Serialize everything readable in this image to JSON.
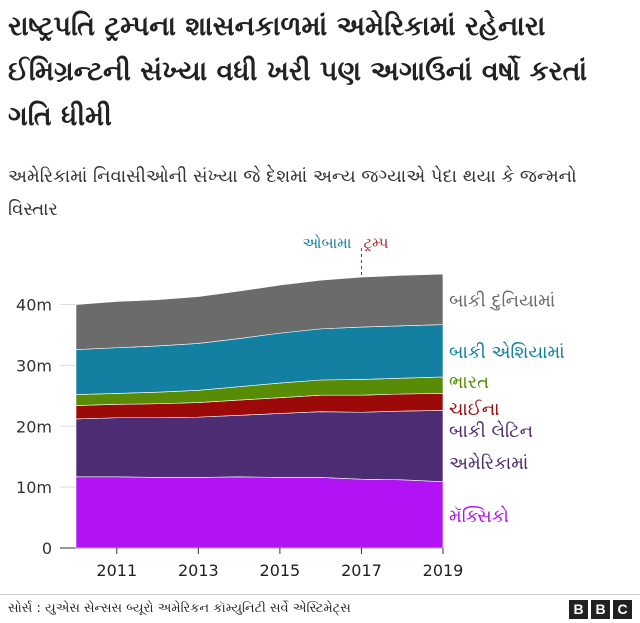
{
  "title": "રાષ્ટ્રપતિ ટ્રમ્પના શાસનકાળમાં અમેરિકામાં રહેનારા ઈમિગ્રન્ટની સંખ્યા વધી ખરી પણ અગાઉનાં વર્ષો કરતાં ગતિ ધીમી",
  "subtitle": "અમેરિકામાં નિવાસીઓની સંખ્યા જે દેશમાં અન્ય જગ્યાએ પેદા થયા કે જન્મનો વિસ્તાર",
  "source": "સોર્સ : યુએસ સેન્સસ બ્યૂરો અમેરિકન કૉમ્યુનિટી સર્વે એસ્ટિમેટ્સ",
  "logo": [
    "B",
    "B",
    "C"
  ],
  "chart_data": {
    "type": "area",
    "stacked": true,
    "x": [
      2010,
      2011,
      2012,
      2013,
      2014,
      2015,
      2016,
      2017,
      2018,
      2019
    ],
    "xticks": [
      2011,
      2013,
      2015,
      2017,
      2019
    ],
    "ytick_labels": [
      "0",
      "10m",
      "20m",
      "30m",
      "40m"
    ],
    "yticks": [
      0,
      10,
      20,
      30,
      40
    ],
    "ylim": [
      0,
      46
    ],
    "grid": true,
    "legend": "right, labels beside areas",
    "annotations": [
      {
        "label": "ઓબામા",
        "x": 2017,
        "side": "left",
        "color": "#1380a1"
      },
      {
        "label": "ટ્રમ્પ",
        "x": 2017,
        "side": "right",
        "color": "#bb1919"
      }
    ],
    "series": [
      {
        "name": "મૅક્સિકો",
        "color": "#b313f4",
        "values": [
          11.7,
          11.7,
          11.6,
          11.6,
          11.7,
          11.6,
          11.6,
          11.3,
          11.2,
          10.9
        ]
      },
      {
        "name": "બાકી લેટિન અમેરિકામાં",
        "color": "#4c2c72",
        "values": [
          9.5,
          9.7,
          9.8,
          9.9,
          10.1,
          10.5,
          10.8,
          11.0,
          11.3,
          11.7
        ]
      },
      {
        "name": "ચાઈના",
        "color": "#9b0909",
        "values": [
          2.2,
          2.2,
          2.3,
          2.4,
          2.5,
          2.6,
          2.7,
          2.8,
          2.8,
          2.8
        ]
      },
      {
        "name": "ભારત",
        "color": "#588c06",
        "values": [
          1.8,
          1.8,
          1.9,
          2.0,
          2.2,
          2.4,
          2.5,
          2.6,
          2.6,
          2.7
        ]
      },
      {
        "name": "બાકી એશિયામાં",
        "color": "#1380a1",
        "values": [
          7.4,
          7.5,
          7.6,
          7.7,
          7.9,
          8.2,
          8.4,
          8.6,
          8.6,
          8.6
        ]
      },
      {
        "name": "બાકી દુનિયામાં",
        "color": "#6b6b6b",
        "values": [
          7.4,
          7.6,
          7.6,
          7.7,
          7.8,
          7.9,
          8.0,
          8.2,
          8.3,
          8.3
        ]
      }
    ],
    "label_colors": [
      "#b313f4",
      "#4c2c72",
      "#9b0909",
      "#588c06",
      "#1380a1",
      "#6b6b6b"
    ]
  }
}
